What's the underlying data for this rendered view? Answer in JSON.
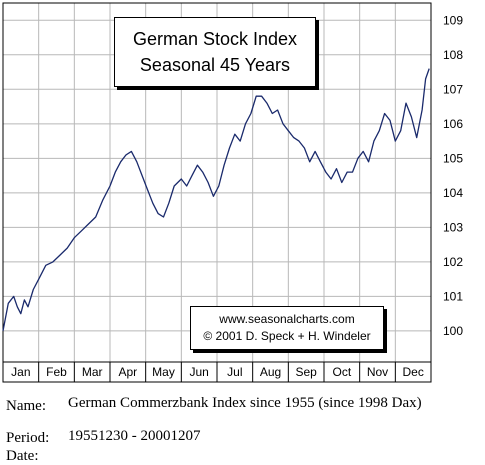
{
  "chart_data": {
    "type": "line",
    "title": "German Stock Index",
    "subtitle": "Seasonal 45 Years",
    "x_categories": [
      "Jan",
      "Feb",
      "Mar",
      "Apr",
      "May",
      "Jun",
      "Jul",
      "Aug",
      "Sep",
      "Oct",
      "Nov",
      "Dec"
    ],
    "y_ticks": [
      100,
      101,
      102,
      103,
      104,
      105,
      106,
      107,
      108,
      109
    ],
    "ylim": [
      99.1,
      109.5
    ],
    "grid": true,
    "y_axis_side": "right",
    "series": [
      {
        "color": "#1a2a6c",
        "x": [
          0,
          0.15,
          0.3,
          0.4,
          0.5,
          0.6,
          0.7,
          0.85,
          1.0,
          1.2,
          1.4,
          1.6,
          1.8,
          2.0,
          2.2,
          2.4,
          2.6,
          2.8,
          3.0,
          3.15,
          3.3,
          3.45,
          3.6,
          3.75,
          3.9,
          4.05,
          4.2,
          4.35,
          4.5,
          4.65,
          4.8,
          5.0,
          5.15,
          5.3,
          5.45,
          5.6,
          5.75,
          5.9,
          6.05,
          6.2,
          6.35,
          6.5,
          6.65,
          6.8,
          6.95,
          7.1,
          7.25,
          7.4,
          7.55,
          7.7,
          7.85,
          8.0,
          8.15,
          8.3,
          8.45,
          8.6,
          8.75,
          8.9,
          9.05,
          9.2,
          9.35,
          9.5,
          9.65,
          9.8,
          9.95,
          10.1,
          10.25,
          10.4,
          10.55,
          10.7,
          10.85,
          11.0,
          11.15,
          11.3,
          11.45,
          11.6,
          11.75,
          11.85,
          11.95
        ],
        "y": [
          100.0,
          100.8,
          101.0,
          100.7,
          100.5,
          100.9,
          100.7,
          101.2,
          101.5,
          101.9,
          102.0,
          102.2,
          102.4,
          102.7,
          102.9,
          103.1,
          103.3,
          103.8,
          104.2,
          104.6,
          104.9,
          105.1,
          105.2,
          104.9,
          104.5,
          104.1,
          103.7,
          103.4,
          103.3,
          103.7,
          104.2,
          104.4,
          104.2,
          104.5,
          104.8,
          104.6,
          104.3,
          103.9,
          104.2,
          104.8,
          105.3,
          105.7,
          105.5,
          106.0,
          106.3,
          106.8,
          106.8,
          106.6,
          106.3,
          106.4,
          106.0,
          105.8,
          105.6,
          105.5,
          105.3,
          104.9,
          105.2,
          104.9,
          104.6,
          104.4,
          104.7,
          104.3,
          104.6,
          104.6,
          105.0,
          105.2,
          104.9,
          105.5,
          105.8,
          106.3,
          106.1,
          105.5,
          105.8,
          106.6,
          106.2,
          105.6,
          106.4,
          107.3,
          107.6
        ]
      }
    ]
  },
  "title_box": {
    "line1": "German Stock Index",
    "line2": "Seasonal 45 Years"
  },
  "credit_box": {
    "line1": "www.seasonalcharts.com",
    "line2": "© 2001 D. Speck + H. Windeler"
  },
  "meta": {
    "name_label": "Name:",
    "name_value": "German Commerzbank Index since 1955 (since 1998 Dax)",
    "period_label": "Period:",
    "period_value": "19551230 - 20001207",
    "date_label": "Date:"
  }
}
